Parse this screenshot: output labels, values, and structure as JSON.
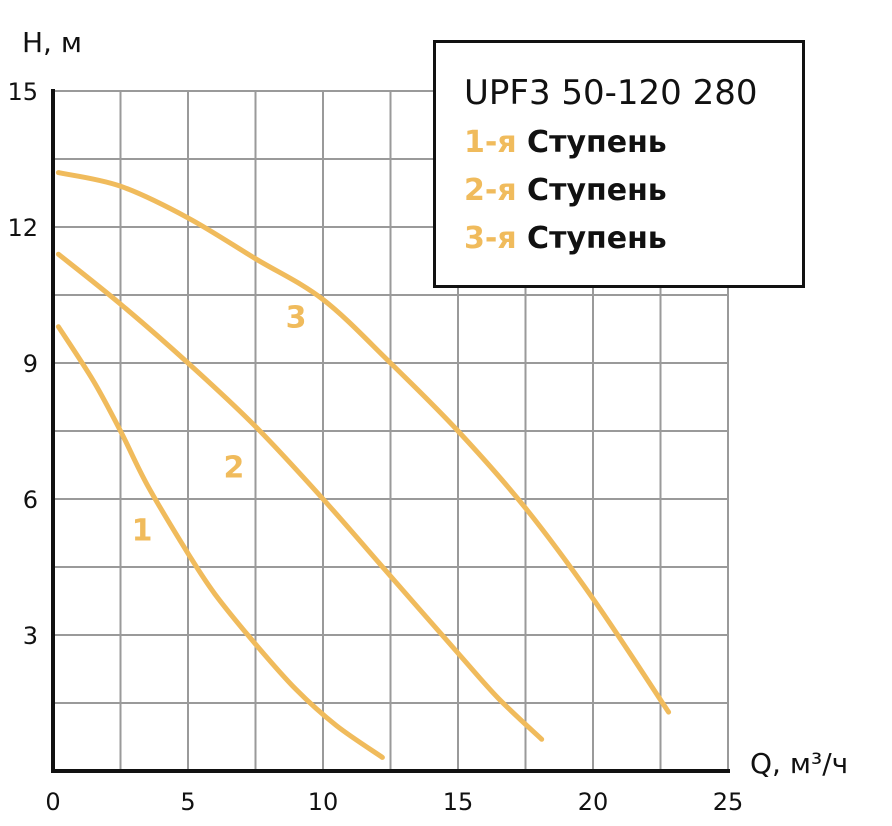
{
  "chart_data": {
    "type": "line",
    "title": "",
    "xlabel": "Q, м³/ч",
    "ylabel": "H, м",
    "xlim": [
      0,
      25
    ],
    "ylim": [
      0,
      15
    ],
    "x_ticks": [
      "0",
      "5",
      "10",
      "15",
      "20",
      "25"
    ],
    "y_ticks": [
      "3",
      "6",
      "9",
      "12",
      "15"
    ],
    "grid": true,
    "line_color": "#f0bb5c",
    "series": [
      {
        "name": "1",
        "points": [
          [
            0.2,
            9.8
          ],
          [
            1.5,
            8.6
          ],
          [
            2.5,
            7.5
          ],
          [
            3.5,
            6.3
          ],
          [
            5.0,
            4.8
          ],
          [
            6.0,
            3.9
          ],
          [
            7.5,
            2.8
          ],
          [
            9.0,
            1.8
          ],
          [
            10.5,
            1.0
          ],
          [
            12.2,
            0.3
          ]
        ]
      },
      {
        "name": "2",
        "points": [
          [
            0.2,
            11.4
          ],
          [
            2.5,
            10.3
          ],
          [
            5.0,
            9.0
          ],
          [
            7.5,
            7.6
          ],
          [
            10.0,
            6.0
          ],
          [
            12.5,
            4.3
          ],
          [
            15.0,
            2.6
          ],
          [
            16.5,
            1.6
          ],
          [
            18.1,
            0.7
          ]
        ]
      },
      {
        "name": "3",
        "points": [
          [
            0.2,
            13.2
          ],
          [
            2.5,
            12.9
          ],
          [
            5.0,
            12.2
          ],
          [
            7.5,
            11.3
          ],
          [
            10.0,
            10.4
          ],
          [
            12.5,
            9.0
          ],
          [
            15.0,
            7.5
          ],
          [
            17.5,
            5.8
          ],
          [
            20.0,
            3.8
          ],
          [
            22.8,
            1.3
          ]
        ]
      }
    ],
    "labels_at": [
      [
        3.3,
        5.3
      ],
      [
        6.7,
        6.7
      ],
      [
        9.0,
        10.0
      ]
    ]
  },
  "legend": {
    "title": "UPF3 50-120 280",
    "rows": [
      {
        "num": "1-я",
        "word": "Ступень"
      },
      {
        "num": "2-я",
        "word": "Ступень"
      },
      {
        "num": "3-я",
        "word": "Ступень"
      }
    ]
  }
}
